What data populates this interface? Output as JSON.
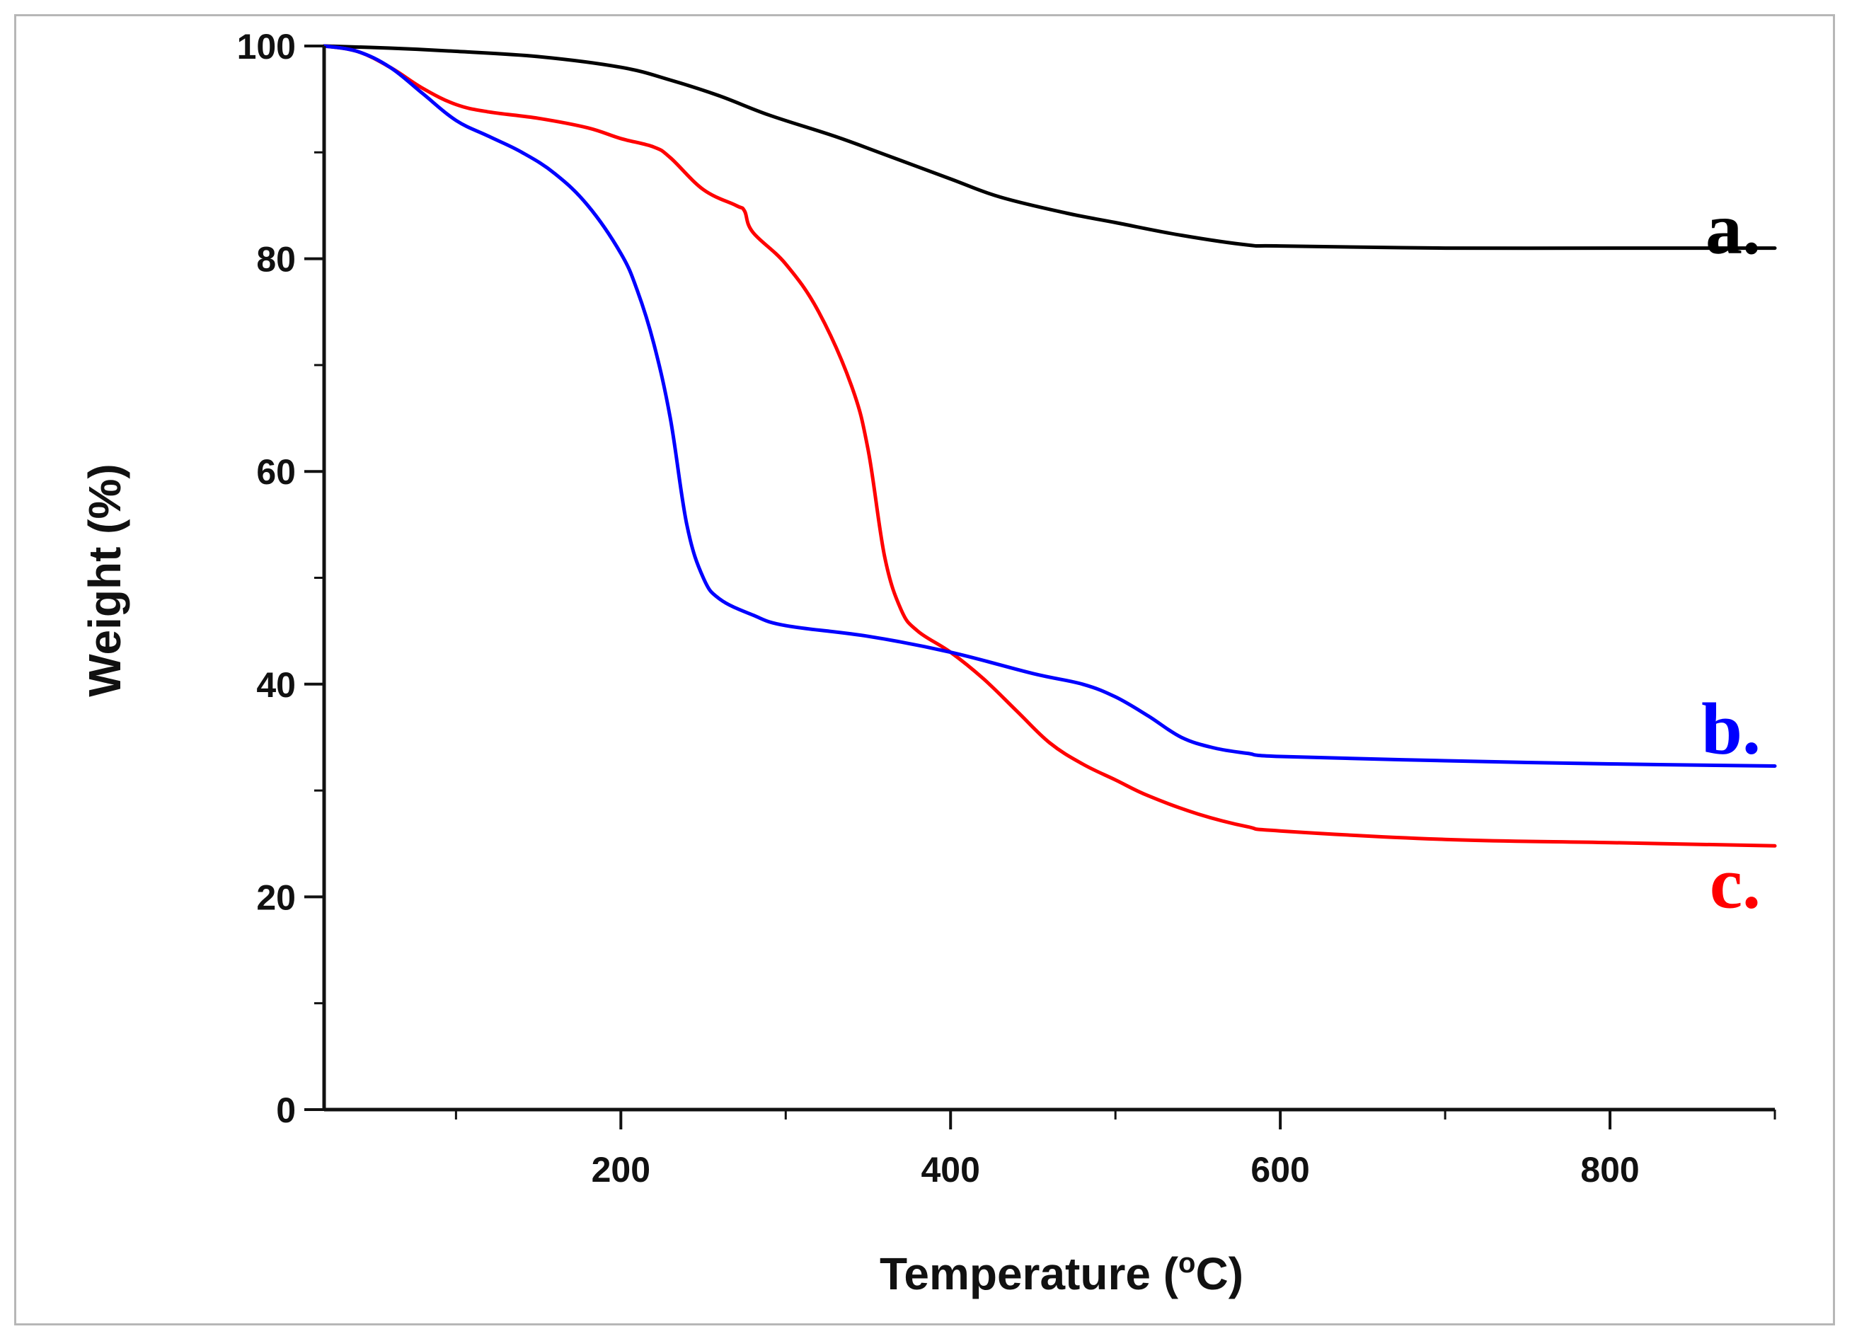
{
  "chart_data": {
    "type": "line",
    "title": "",
    "xlabel": "Temperature",
    "xlabel_unit_prefix": "(",
    "xlabel_unit_sup": "o",
    "xlabel_unit_suffix": "C)",
    "ylabel": "Weight (%)",
    "xlim": [
      20,
      900
    ],
    "ylim": [
      0,
      100
    ],
    "x_ticks": [
      200,
      400,
      600,
      800
    ],
    "x_minor_ticks": [
      100,
      300,
      500,
      700,
      900
    ],
    "y_ticks": [
      0,
      20,
      40,
      60,
      80,
      100
    ],
    "y_minor_ticks": [
      10,
      30,
      50,
      70,
      90
    ],
    "grid": false,
    "series": [
      {
        "name": "a",
        "label": "a.",
        "color": "#000000",
        "x": [
          20,
          60,
          100,
          150,
          200,
          230,
          260,
          290,
          330,
          360,
          400,
          430,
          470,
          500,
          540,
          580,
          600,
          700,
          800,
          900
        ],
        "y": [
          100,
          99.8,
          99.5,
          99.0,
          98.0,
          96.8,
          95.3,
          93.5,
          91.5,
          89.8,
          87.5,
          85.8,
          84.3,
          83.4,
          82.2,
          81.3,
          81.2,
          81.0,
          81.0,
          81.0
        ]
      },
      {
        "name": "b",
        "label": "b.",
        "color": "#0000ff",
        "x": [
          20,
          40,
          60,
          80,
          100,
          120,
          140,
          160,
          180,
          200,
          210,
          220,
          230,
          240,
          250,
          260,
          280,
          300,
          350,
          400,
          450,
          480,
          500,
          520,
          540,
          560,
          580,
          600,
          700,
          800,
          900
        ],
        "y": [
          100,
          99.5,
          98.0,
          95.5,
          93.0,
          91.5,
          90.0,
          88.0,
          85.0,
          80.5,
          77.0,
          72.0,
          65.0,
          55.0,
          50.0,
          48.0,
          46.5,
          45.5,
          44.5,
          43.0,
          41.0,
          40.0,
          38.8,
          37.0,
          35.0,
          34.0,
          33.5,
          33.2,
          32.8,
          32.5,
          32.3
        ]
      },
      {
        "name": "c",
        "label": "c.",
        "color": "#ff0000",
        "x": [
          20,
          40,
          60,
          80,
          100,
          120,
          150,
          180,
          200,
          220,
          230,
          250,
          270,
          275,
          280,
          300,
          320,
          340,
          350,
          360,
          370,
          380,
          400,
          420,
          440,
          460,
          480,
          500,
          520,
          550,
          580,
          600,
          700,
          800,
          900
        ],
        "y": [
          100,
          99.5,
          98.0,
          96.0,
          94.5,
          93.8,
          93.2,
          92.3,
          91.3,
          90.5,
          89.5,
          86.5,
          85.0,
          84.5,
          82.5,
          79.5,
          75.0,
          68.0,
          62.0,
          52.0,
          47.0,
          45.0,
          43.0,
          40.5,
          37.5,
          34.5,
          32.5,
          31.0,
          29.5,
          27.8,
          26.6,
          26.2,
          25.4,
          25.1,
          24.8
        ]
      }
    ]
  }
}
